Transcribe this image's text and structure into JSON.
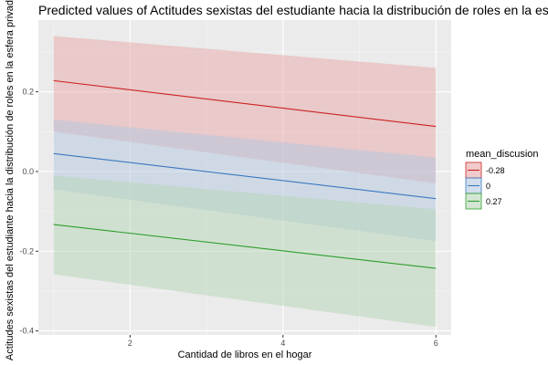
{
  "chart_data": {
    "type": "line",
    "title": "Predicted values of Actitudes sexistas del estudiante hacia la distribución de roles en la esfera privada",
    "xlabel": "Cantidad de libros en el hogar",
    "ylabel": "Actitudes sexistas del estudiante hacia la distribución de roles en la esfera privada",
    "xlim": [
      0.8,
      6.2
    ],
    "ylim": [
      -0.41,
      0.38
    ],
    "x_ticks": [
      2,
      4,
      6
    ],
    "y_ticks": [
      -0.4,
      -0.2,
      0.0,
      0.2
    ],
    "x_tick_labels": [
      "2",
      "4",
      "6"
    ],
    "y_tick_labels": [
      "-0.4",
      "-0.2",
      "0.0",
      "0.2"
    ],
    "grid": true,
    "legend_title": "mean_discusion",
    "legend_position": "right",
    "series": [
      {
        "name": "-0.28",
        "color": "#cc2222",
        "fill": "#e8a8a8",
        "x": [
          1,
          6
        ],
        "y": [
          0.228,
          0.113
        ],
        "lower": [
          0.1,
          -0.03
        ],
        "upper": [
          0.34,
          0.26
        ]
      },
      {
        "name": "0",
        "color": "#3a78c0",
        "fill": "#b4c8e0",
        "x": [
          1,
          6
        ],
        "y": [
          0.045,
          -0.068
        ],
        "lower": [
          -0.045,
          -0.175
        ],
        "upper": [
          0.13,
          0.035
        ]
      },
      {
        "name": "0.27",
        "color": "#2e9e2e",
        "fill": "#b6d6b6",
        "x": [
          1,
          6
        ],
        "y": [
          -0.133,
          -0.243
        ],
        "lower": [
          -0.258,
          -0.39
        ],
        "upper": [
          -0.01,
          -0.095
        ]
      }
    ]
  }
}
